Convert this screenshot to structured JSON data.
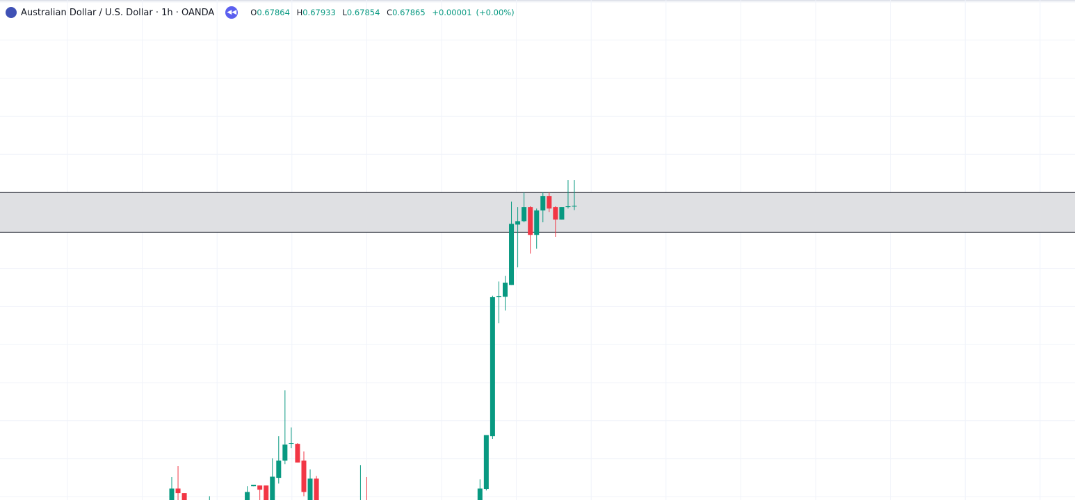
{
  "chart_data": {
    "type": "candlestick",
    "title": "Australian Dollar / U.S. Dollar · 1h · OANDA",
    "legend_labels": {
      "open": "O",
      "high": "H",
      "low": "L",
      "close": "C"
    },
    "change": "+0.00001",
    "change_percent": "(+0.00%)",
    "up_color": "#089981",
    "down_color": "#f23645",
    "ylim": [
      0.67095,
      0.68404
    ],
    "zone": {
      "from": 0.67796,
      "to": 0.679,
      "color": "#dfe0e3"
    },
    "categories": [
      null,
      null,
      null,
      null,
      null,
      null,
      null,
      null,
      null,
      null,
      null,
      null,
      null,
      null,
      null,
      null,
      null,
      null,
      null,
      null,
      null,
      null,
      null,
      null,
      null,
      null,
      null,
      null,
      null,
      null,
      null,
      null,
      null,
      null,
      null,
      null,
      null,
      null,
      null,
      null,
      null,
      null,
      null,
      null,
      null,
      null,
      null,
      null,
      null,
      null,
      null,
      null,
      null,
      null,
      null,
      null,
      null,
      null,
      null,
      null,
      null,
      null,
      null,
      null,
      null
    ],
    "open": [
      0.6707,
      0.67125,
      0.67113,
      null,
      null,
      null,
      0.6709,
      null,
      null,
      null,
      null,
      null,
      0.6707,
      0.67131,
      0.67133,
      0.67133,
      0.6707,
      0.67153,
      0.67198,
      0.67244,
      0.67242,
      0.67198,
      0.6707,
      0.67151,
      null,
      null,
      null,
      null,
      null,
      null,
      0.6707,
      0.6708,
      null,
      null,
      null,
      null,
      null,
      null,
      null,
      null,
      null,
      null,
      null,
      null,
      null,
      null,
      null,
      null,
      null,
      0.6707,
      0.67124,
      0.67262,
      0.67626,
      0.67627,
      0.67658,
      0.67816,
      0.67825,
      0.67862,
      0.67789,
      0.67853,
      0.67891,
      0.67862,
      0.67829,
      0.67862,
      0.67864
    ],
    "high": [
      0.67155,
      0.67184,
      0.67113,
      null,
      null,
      null,
      0.67105,
      null,
      null,
      null,
      null,
      null,
      0.67131,
      0.67135,
      0.67133,
      0.67133,
      0.67204,
      0.67262,
      0.67382,
      0.67285,
      0.67244,
      0.67222,
      0.67175,
      0.67158,
      null,
      null,
      null,
      null,
      null,
      null,
      0.67186,
      0.67155,
      null,
      null,
      null,
      null,
      null,
      null,
      null,
      null,
      null,
      null,
      null,
      null,
      null,
      null,
      null,
      null,
      null,
      0.67149,
      0.67265,
      0.6763,
      0.67667,
      0.67682,
      0.67876,
      0.67862,
      0.679,
      0.67864,
      0.67858,
      0.679,
      0.679,
      0.67864,
      0.67862,
      0.67933,
      0.67933
    ],
    "low": [
      0.6706,
      0.6706,
      0.6706,
      null,
      null,
      null,
      0.6706,
      null,
      null,
      null,
      null,
      null,
      0.6706,
      0.67131,
      0.6706,
      0.6706,
      0.6706,
      0.67138,
      0.67189,
      0.67231,
      0.67193,
      0.67105,
      0.6706,
      0.6706,
      null,
      null,
      null,
      null,
      null,
      null,
      0.6706,
      0.6706,
      null,
      null,
      null,
      null,
      null,
      null,
      null,
      null,
      null,
      null,
      null,
      null,
      null,
      null,
      null,
      null,
      null,
      0.6706,
      0.6712,
      0.67255,
      0.67558,
      0.67591,
      0.67658,
      0.67704,
      0.67822,
      0.6774,
      0.67753,
      0.67822,
      0.67849,
      0.67784,
      0.67829,
      0.67858,
      0.67854
    ],
    "close": [
      0.67125,
      0.67113,
      0.6707,
      null,
      null,
      null,
      0.6709,
      null,
      null,
      null,
      null,
      null,
      0.67116,
      0.67135,
      0.67122,
      0.6707,
      0.67156,
      0.67198,
      0.6724,
      0.67244,
      0.67193,
      0.67116,
      0.67151,
      0.6707,
      null,
      null,
      null,
      null,
      null,
      null,
      0.6707,
      0.6707,
      null,
      null,
      null,
      null,
      null,
      null,
      null,
      null,
      null,
      null,
      null,
      null,
      null,
      null,
      null,
      null,
      null,
      0.67125,
      0.67265,
      0.67626,
      0.67629,
      0.67664,
      0.67818,
      0.67825,
      0.67862,
      0.67789,
      0.67853,
      0.67891,
      0.67858,
      0.67829,
      0.67862,
      0.67864,
      0.67865
    ]
  }
}
